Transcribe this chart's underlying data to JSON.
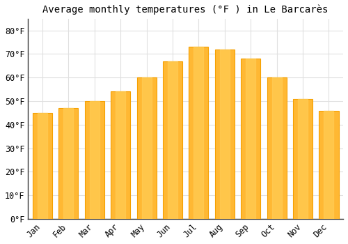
{
  "title": "Average monthly temperatures (°F ) in Le Barcarès",
  "months": [
    "Jan",
    "Feb",
    "Mar",
    "Apr",
    "May",
    "Jun",
    "Jul",
    "Aug",
    "Sep",
    "Oct",
    "Nov",
    "Dec"
  ],
  "values": [
    45,
    47,
    50,
    54,
    60,
    67,
    73,
    72,
    68,
    60,
    51,
    46
  ],
  "bar_color_center": "#FFB833",
  "bar_color_edge": "#F5A000",
  "background_color": "#FFFFFF",
  "grid_color": "#E0E0E0",
  "ylim": [
    0,
    85
  ],
  "yticks": [
    0,
    10,
    20,
    30,
    40,
    50,
    60,
    70,
    80
  ],
  "title_fontsize": 10,
  "tick_fontsize": 8.5,
  "bar_width": 0.75
}
